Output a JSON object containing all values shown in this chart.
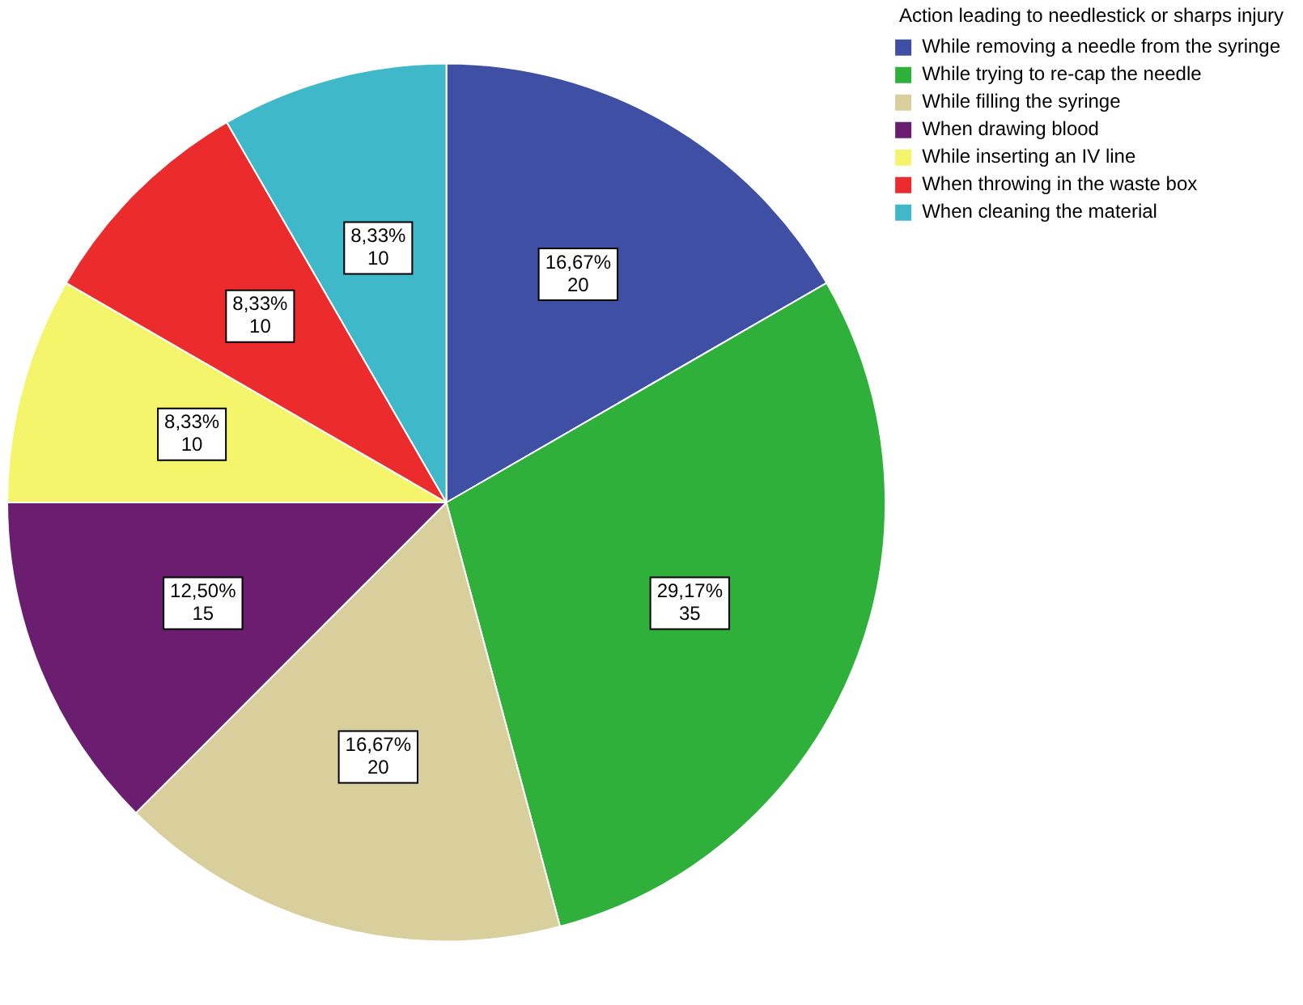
{
  "chart_data": {
    "type": "pie",
    "legend_title": "Action leading to needlestick or sharps injury",
    "legend": "top right",
    "categories": [
      "While removing a needle from the syringe",
      "While trying to re-cap the needle",
      "While filling the syringe",
      "When drawing blood",
      "While inserting an IV line",
      "When throwing in the waste box",
      "When cleaning the material"
    ],
    "values": [
      20,
      35,
      20,
      15,
      10,
      10,
      10
    ],
    "colors": [
      "#3f4fa3",
      "#2fb03a",
      "#d8cf9d",
      "#6b1d6f",
      "#f5f56c",
      "#ec2c2c",
      "#3fb8c9"
    ],
    "value_labels": [
      "16,67%\n20",
      "29,17%\n35",
      "16,67%\n20",
      "12,50%\n15",
      "8,33%\n10",
      "8,33%\n10",
      "8,33%\n10"
    ]
  }
}
